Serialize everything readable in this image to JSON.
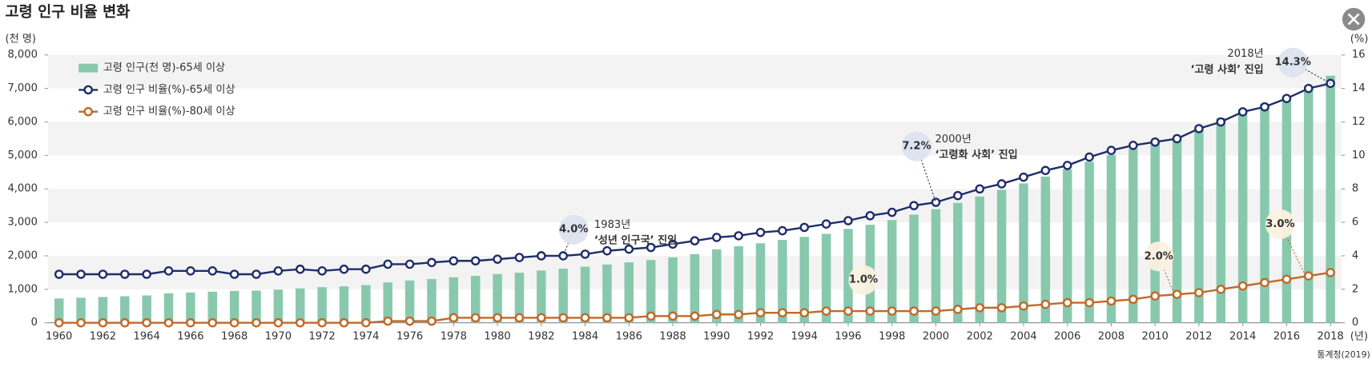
{
  "chart_data": {
    "type": "bar-line",
    "title": "고령 인구 비율 변화",
    "y_label": "(천 명)",
    "y2_label": "(%)",
    "x_label": "(년)",
    "source": "통계청(2019)",
    "categories": [
      "1960",
      null,
      "1962",
      null,
      "1964",
      null,
      "1966",
      null,
      "1968",
      null,
      "1970",
      null,
      "1972",
      null,
      "1974",
      null,
      "1976",
      null,
      "1978",
      null,
      "1980",
      null,
      "1982",
      null,
      "1984",
      null,
      "1986",
      null,
      "1988",
      null,
      "1990",
      null,
      "1992",
      null,
      "1994",
      null,
      "1996",
      null,
      "1998",
      null,
      "2000",
      null,
      "2002",
      null,
      "2004",
      null,
      "2006",
      null,
      "2008",
      null,
      "2010",
      null,
      "2012",
      null,
      "2014",
      null,
      "2016",
      null,
      "2018"
    ],
    "series": [
      {
        "name": "고령 인구(천 명)-65세 이상",
        "type": "bar",
        "color": "#88c9ae",
        "values": [
          726,
          749,
          771,
          794,
          818,
          882,
          906,
          930,
          954,
          963,
          991,
          1027,
          1063,
          1090,
          1126,
          1207,
          1262,
          1309,
          1360,
          1402,
          1456,
          1496,
          1561,
          1615,
          1675,
          1742,
          1807,
          1875,
          1956,
          2052,
          2195,
          2288,
          2375,
          2474,
          2567,
          2657,
          2806,
          2929,
          3069,
          3232,
          3395,
          3581,
          3772,
          3972,
          4164,
          4367,
          4585,
          4810,
          5016,
          5193,
          5366,
          5518,
          5826,
          6119,
          6386,
          6541,
          6763,
          7066,
          7381
        ]
      },
      {
        "name": "고령 인구 비율(%)-65세 이상",
        "type": "line",
        "axis": "y2",
        "color": "#1f2d6b",
        "values": [
          2.9,
          2.9,
          2.9,
          2.9,
          2.9,
          3.1,
          3.1,
          3.1,
          2.9,
          2.9,
          3.1,
          3.2,
          3.1,
          3.2,
          3.2,
          3.5,
          3.5,
          3.6,
          3.7,
          3.7,
          3.8,
          3.9,
          4.0,
          4.0,
          4.1,
          4.3,
          4.4,
          4.5,
          4.7,
          4.9,
          5.1,
          5.2,
          5.4,
          5.5,
          5.7,
          5.9,
          6.1,
          6.4,
          6.6,
          7.0,
          7.2,
          7.6,
          8.0,
          8.3,
          8.7,
          9.1,
          9.4,
          9.9,
          10.3,
          10.6,
          10.8,
          11.0,
          11.6,
          12.0,
          12.6,
          12.9,
          13.4,
          14.0,
          14.3
        ],
        "value_labels": [
          null,
          null,
          null,
          null,
          null,
          null,
          null,
          null,
          null,
          null,
          null,
          null,
          null,
          null,
          null,
          null,
          null,
          null,
          null,
          null,
          null,
          null,
          null,
          "4.0%",
          null,
          null,
          null,
          null,
          null,
          null,
          null,
          null,
          null,
          null,
          null,
          null,
          null,
          null,
          null,
          null,
          "7.2%",
          null,
          null,
          null,
          null,
          null,
          null,
          null,
          null,
          null,
          null,
          null,
          null,
          null,
          null,
          null,
          null,
          null,
          "14.3%"
        ]
      },
      {
        "name": "고령 인구 비율(%)-80세 이상",
        "type": "line",
        "axis": "y2",
        "color": "#c0692a",
        "values": [
          0,
          0,
          0,
          0,
          0,
          0,
          0,
          0,
          0,
          0,
          0,
          0,
          0,
          0,
          0,
          0.1,
          0.1,
          0.1,
          0.3,
          0.3,
          0.3,
          0.3,
          0.3,
          0.3,
          0.3,
          0.3,
          0.3,
          0.4,
          0.4,
          0.4,
          0.5,
          0.5,
          0.6,
          0.6,
          0.6,
          0.7,
          0.7,
          0.7,
          0.7,
          0.7,
          0.7,
          0.8,
          0.9,
          0.9,
          1.0,
          1.1,
          1.2,
          1.2,
          1.3,
          1.4,
          1.6,
          1.7,
          1.8,
          2.0,
          2.2,
          2.4,
          2.6,
          2.8,
          3.0
        ]
      }
    ],
    "annotations": [
      {
        "lines": [
          "1983년",
          "‘성년 인구국’ 진입"
        ]
      },
      {
        "lines": [
          "2000년",
          "‘고령화 사회’ 진입"
        ]
      },
      {
        "lines": [
          "2018년",
          "‘고령 사회’ 진입"
        ]
      },
      {
        "badge": "1.0%"
      },
      {
        "badge": "2.0%"
      },
      {
        "badge": "3.0%"
      }
    ],
    "ylim": [
      0,
      8000
    ],
    "yticks": [
      0,
      {
        "value": 1000,
        "label": "1,000"
      },
      {
        "value": 2000,
        "label": "2,000"
      },
      {
        "value": 3000,
        "label": "3,000"
      },
      {
        "value": 4000,
        "label": "4,000"
      },
      {
        "value": 5000,
        "label": "5,000"
      },
      {
        "value": 6000,
        "label": "6,000"
      },
      {
        "value": 7000,
        "label": "7,000"
      },
      {
        "value": 8000,
        "label": "8,000"
      }
    ],
    "y2lim": [
      0,
      16
    ],
    "y2ticks": [
      0,
      2,
      4,
      6,
      8,
      10,
      12,
      14,
      16
    ],
    "legend": "top-left",
    "banded_background": true
  }
}
